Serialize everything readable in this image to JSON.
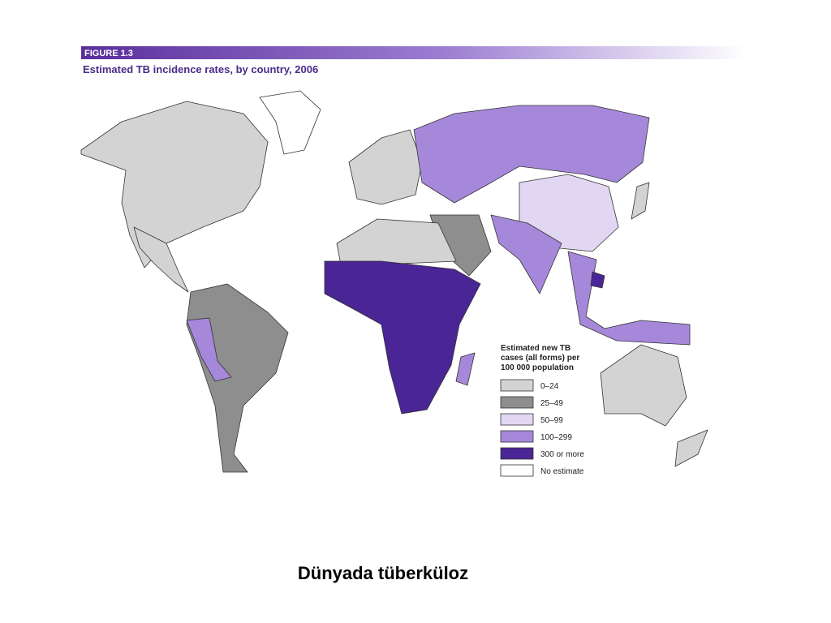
{
  "figure": {
    "label": "FIGURE 1.3",
    "title": "Estimated TB incidence rates, by country, 2006"
  },
  "legend": {
    "title_lines": [
      "Estimated new TB",
      "cases (all forms) per",
      "100 000 population"
    ],
    "items": [
      {
        "label": "0–24",
        "color": "#d3d3d3"
      },
      {
        "label": "25–49",
        "color": "#8e8e8e"
      },
      {
        "label": "50–99",
        "color": "#e2d7f2"
      },
      {
        "label": "100–299",
        "color": "#a688da"
      },
      {
        "label": "300 or more",
        "color": "#4a2596"
      },
      {
        "label": "No estimate",
        "color": "#ffffff"
      }
    ]
  },
  "caption": "Dünyada tüberküloz"
}
